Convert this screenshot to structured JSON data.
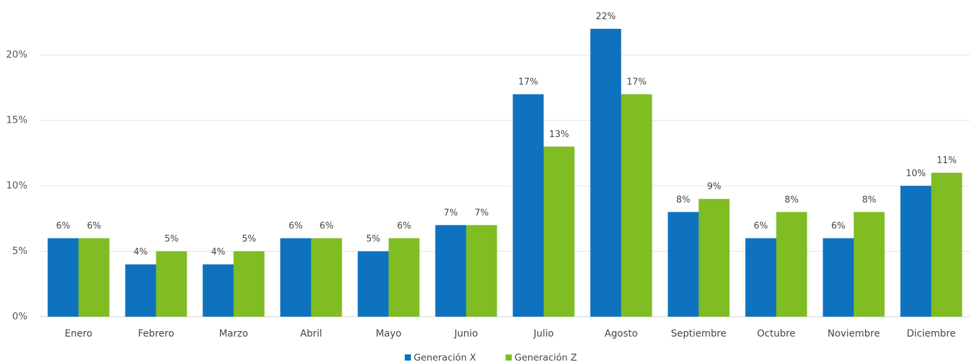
{
  "chart_data": {
    "type": "bar",
    "categories": [
      "Enero",
      "Febrero",
      "Marzo",
      "Abril",
      "Mayo",
      "Junio",
      "Julio",
      "Agosto",
      "Septiembre",
      "Octubre",
      "Noviembre",
      "Diciembre"
    ],
    "series": [
      {
        "name": "Generación X",
        "color": "#0f72bf",
        "values": [
          6,
          4,
          4,
          6,
          5,
          7,
          17,
          22,
          8,
          6,
          6,
          10
        ]
      },
      {
        "name": "Generación Z",
        "color": "#7fbd23",
        "values": [
          6,
          5,
          5,
          6,
          6,
          7,
          13,
          17,
          9,
          8,
          8,
          11
        ]
      }
    ],
    "value_suffix": "%",
    "ylim": [
      0,
      22
    ],
    "yticks": [
      "0%",
      "5%",
      "10%",
      "15%",
      "20%"
    ],
    "ytick_values": [
      0,
      5,
      10,
      15,
      20
    ],
    "grid": true,
    "legend_position": "bottom-center"
  }
}
